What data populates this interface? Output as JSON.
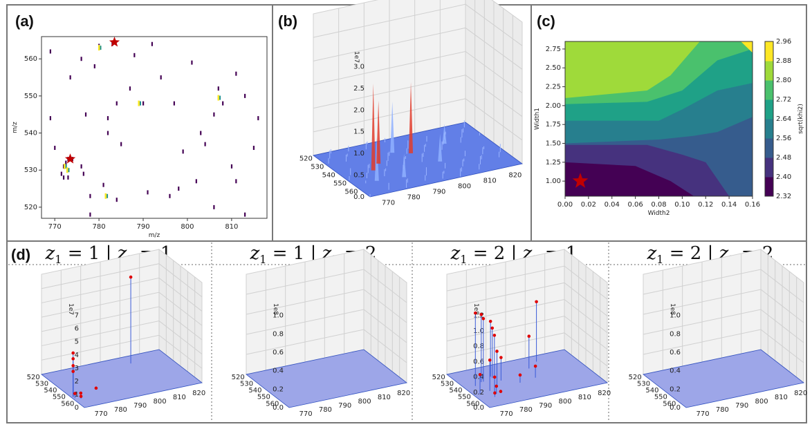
{
  "panel_labels": {
    "a": "(a)",
    "b": "(b)",
    "c": "(c)",
    "d": "(d)"
  },
  "colors": {
    "star": "#c00000",
    "viridis_low": "#440154",
    "viridis_high": "#fde725",
    "surface": "#4f6bdc",
    "spike_red": "#e23c2c",
    "point_red": "#e00000"
  },
  "chart_data": [
    {
      "id": "a",
      "type": "scatter",
      "xlabel": "m/z",
      "ylabel": "m/z",
      "xlim": [
        767,
        818
      ],
      "ylim": [
        517,
        566
      ],
      "xticks": [
        "770",
        "780",
        "790",
        "800",
        "810"
      ],
      "yticks": [
        "520",
        "530",
        "540",
        "550",
        "560"
      ],
      "points": [
        [
          773,
          533
        ],
        [
          772,
          531
        ],
        [
          772.5,
          532
        ],
        [
          771.5,
          529
        ],
        [
          773,
          528
        ],
        [
          772,
          528
        ],
        [
          774,
          533
        ],
        [
          776,
          531
        ],
        [
          776.5,
          529
        ],
        [
          779,
          558
        ],
        [
          780,
          563.5
        ],
        [
          783,
          564
        ],
        [
          790,
          548
        ],
        [
          787,
          552
        ],
        [
          785,
          537
        ],
        [
          782,
          544
        ],
        [
          782,
          540
        ],
        [
          781,
          526
        ],
        [
          778,
          518
        ],
        [
          778,
          523
        ],
        [
          770,
          536
        ],
        [
          769,
          544
        ],
        [
          773.5,
          555
        ],
        [
          769,
          562
        ],
        [
          776,
          560
        ],
        [
          777,
          545
        ],
        [
          784,
          548
        ],
        [
          784,
          522
        ],
        [
          797,
          548
        ],
        [
          806,
          545
        ],
        [
          807,
          552
        ],
        [
          808,
          548
        ],
        [
          811,
          556
        ],
        [
          813,
          550
        ],
        [
          799,
          535
        ],
        [
          803,
          540
        ],
        [
          804,
          537
        ],
        [
          796,
          523
        ],
        [
          791,
          524
        ],
        [
          806,
          520
        ],
        [
          810,
          531
        ],
        [
          811,
          527
        ],
        [
          813,
          518
        ],
        [
          815,
          536
        ],
        [
          816,
          544
        ],
        [
          794,
          555
        ],
        [
          801,
          559
        ],
        [
          788,
          561
        ],
        [
          792,
          564
        ],
        [
          798,
          525
        ],
        [
          802,
          527
        ]
      ],
      "hot_points": [
        [
          772.2,
          531
        ],
        [
          772.8,
          530
        ],
        [
          807,
          549.5
        ],
        [
          781.5,
          523
        ],
        [
          780,
          563
        ],
        [
          789,
          548
        ]
      ],
      "stars": [
        [
          773.5,
          533
        ],
        [
          783.5,
          564.5
        ]
      ]
    },
    {
      "id": "b",
      "type": "surface3d",
      "sci_label": "1e7",
      "zticks": [
        "0.0",
        "0.5",
        "1.0",
        "1.5",
        "2.0",
        "2.5",
        "3.0"
      ],
      "xticks": [
        "770",
        "780",
        "790",
        "800",
        "810",
        "820"
      ],
      "yticks": [
        "520",
        "530",
        "540",
        "550",
        "560"
      ],
      "spikes": [
        {
          "x": 775,
          "y": 530,
          "z": 1.1
        },
        {
          "x": 778,
          "y": 540,
          "z": 2.2
        },
        {
          "x": 782,
          "y": 545,
          "z": 1.6
        },
        {
          "x": 790,
          "y": 552,
          "z": 1.3
        },
        {
          "x": 795,
          "y": 548,
          "z": 1.8
        },
        {
          "x": 784,
          "y": 528,
          "z": 0.6
        },
        {
          "x": 800,
          "y": 535,
          "z": 0.7
        },
        {
          "x": 808,
          "y": 550,
          "z": 0.5
        }
      ]
    },
    {
      "id": "c",
      "type": "contourf",
      "xlabel": "Width2",
      "ylabel": "Width1",
      "colorbar_label": "sqrt(khi2)",
      "xticks": [
        "0.00",
        "0.02",
        "0.04",
        "0.06",
        "0.08",
        "0.10",
        "0.12",
        "0.14",
        "0.16"
      ],
      "yticks": [
        "1.00",
        "1.25",
        "1.50",
        "1.75",
        "2.00",
        "2.25",
        "2.50",
        "2.75"
      ],
      "xlim": [
        0,
        0.16
      ],
      "ylim": [
        0.8,
        2.85
      ],
      "colorbar_ticks": [
        "2.32",
        "2.40",
        "2.48",
        "2.56",
        "2.64",
        "2.72",
        "2.80",
        "2.88",
        "2.96"
      ],
      "levels": [
        2.32,
        2.4,
        2.48,
        2.56,
        2.64,
        2.72,
        2.8,
        2.88,
        2.96
      ],
      "star": [
        0.013,
        1.0
      ]
    },
    {
      "id": "d1",
      "type": "scatter3d",
      "title_parts": [
        "z",
        "1",
        " = 1 | ",
        "z",
        "2",
        " = 1"
      ],
      "sci_label": "1e7",
      "zticks": [
        "0",
        "1",
        "2",
        "3",
        "4",
        "5",
        "6",
        "7"
      ],
      "zmax": 8,
      "xticks": [
        "770",
        "780",
        "790",
        "800",
        "810",
        "820"
      ],
      "yticks": [
        "520",
        "530",
        "540",
        "550",
        "560"
      ],
      "points": [
        [
          768,
          532,
          3.8
        ],
        [
          768,
          532,
          3.3
        ],
        [
          768,
          532,
          2.7
        ],
        [
          768,
          532,
          2.2
        ],
        [
          768,
          530,
          0.4
        ],
        [
          770,
          528,
          0.2
        ],
        [
          780,
          535,
          0.1
        ],
        [
          805,
          556,
          7.5
        ],
        [
          772,
          533,
          0.1
        ]
      ]
    },
    {
      "id": "d2",
      "type": "scatter3d",
      "title_parts": [
        "z",
        "1",
        " = 1 | ",
        "z",
        "2",
        " = 2"
      ],
      "sci_label": "1e8",
      "zticks": [
        "0.0",
        "0.2",
        "0.4",
        "0.6",
        "0.8",
        "1.0"
      ],
      "zmax": 1.0,
      "xticks": [
        "770",
        "780",
        "790",
        "800",
        "810",
        "820"
      ],
      "yticks": [
        "520",
        "530",
        "540",
        "550",
        "560"
      ],
      "points": []
    },
    {
      "id": "d3",
      "type": "scatter3d",
      "title_parts": [
        "z",
        "1",
        " = 2 | ",
        "z",
        "2",
        " = 1"
      ],
      "sci_label": "1e8",
      "zticks": [
        "0.0",
        "0.2",
        "0.4",
        "0.6",
        "0.8",
        "1.0",
        "1.2"
      ],
      "zmax": 1.2,
      "xticks": [
        "770",
        "780",
        "790",
        "800",
        "810",
        "820"
      ],
      "yticks": [
        "520",
        "530",
        "540",
        "550",
        "560"
      ],
      "points": [
        [
          772,
          545,
          0.95
        ],
        [
          776,
          548,
          0.88
        ],
        [
          777,
          548,
          0.82
        ],
        [
          782,
          552,
          0.72
        ],
        [
          782,
          550,
          0.65
        ],
        [
          783,
          550,
          0.55
        ],
        [
          780,
          540,
          0.45
        ],
        [
          775,
          536,
          0.4
        ],
        [
          770,
          535,
          0.25
        ],
        [
          776,
          533,
          0.2
        ],
        [
          784,
          545,
          0.3
        ],
        [
          806,
          558,
          0.78
        ],
        [
          800,
          552,
          0.42
        ],
        [
          774,
          528,
          0.05
        ],
        [
          776,
          531,
          0.1
        ],
        [
          790,
          538,
          0.1
        ],
        [
          798,
          540,
          0.15
        ],
        [
          778,
          531,
          0.02
        ]
      ]
    },
    {
      "id": "d4",
      "type": "scatter3d",
      "title_parts": [
        "z",
        "1",
        " = 2 | ",
        "z",
        "2",
        " = 2"
      ],
      "sci_label": "1e8",
      "zticks": [
        "0.0",
        "0.2",
        "0.4",
        "0.6",
        "0.8",
        "1.0"
      ],
      "zmax": 1.0,
      "xticks": [
        "770",
        "780",
        "790",
        "800",
        "810",
        "820"
      ],
      "yticks": [
        "520",
        "530",
        "540",
        "550",
        "560"
      ],
      "points": []
    }
  ]
}
